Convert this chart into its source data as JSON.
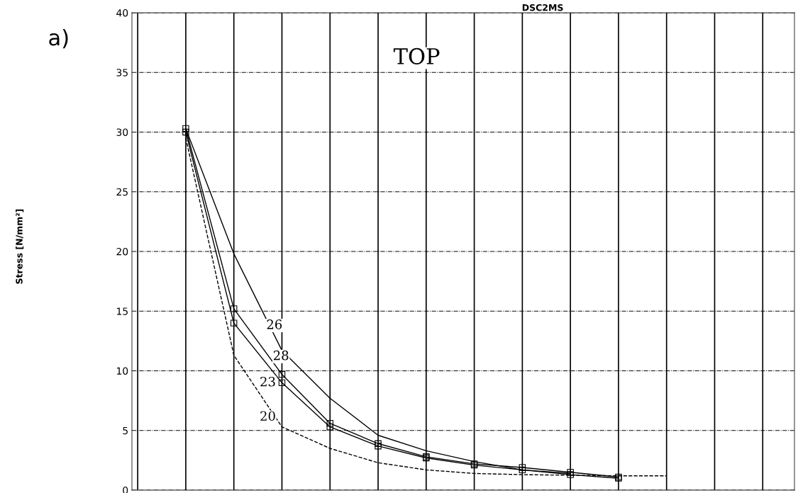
{
  "chart_data": {
    "type": "line",
    "title": "DSC2MS",
    "categories": [
      null,
      null,
      null,
      null,
      null,
      null,
      null,
      null,
      null,
      null,
      null,
      null,
      null,
      null
    ],
    "ylim": [
      0,
      40
    ],
    "yticks": [
      0,
      5,
      10,
      15,
      20,
      25,
      30,
      35,
      40
    ],
    "grid": true,
    "tick_labels": "y",
    "series": [
      {
        "color": "#000000",
        "line_style": "solid",
        "marker": "none",
        "values": [
          null,
          30.3,
          19.8,
          11.7,
          7.7,
          4.6,
          3.3,
          2.4,
          1.7,
          1.4,
          null,
          null,
          null,
          null
        ]
      },
      {
        "color": "#000000",
        "line_style": "solid",
        "marker": "square",
        "values": [
          null,
          30.3,
          15.2,
          9.7,
          5.6,
          3.9,
          2.8,
          2.2,
          1.9,
          1.5,
          1.1,
          null,
          null,
          null
        ]
      },
      {
        "color": "#000000",
        "line_style": "solid",
        "marker": "square",
        "values": [
          null,
          30.0,
          14.0,
          9.0,
          5.3,
          3.7,
          2.7,
          2.1,
          1.7,
          1.3,
          1.0,
          null,
          null,
          null
        ]
      },
      {
        "color": "#000000",
        "line_style": "dashed",
        "marker": "none",
        "values": [
          null,
          29.5,
          11.3,
          5.3,
          3.5,
          2.3,
          1.7,
          1.4,
          1.3,
          1.25,
          1.2,
          1.2,
          null,
          null
        ]
      }
    ],
    "annotations": [
      "a)",
      "TOP",
      "26",
      "28",
      "23",
      "20",
      "Stress [N/mm²]"
    ]
  }
}
